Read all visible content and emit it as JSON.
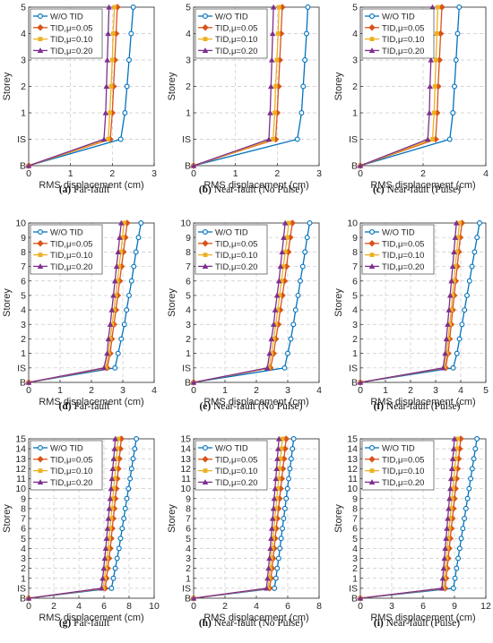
{
  "colors": {
    "W/O TID": "#0072BD",
    "TID,μ=0.05": "#D95319",
    "TID,μ=0.10": "#EDB120",
    "TID,μ=0.20": "#7E2F8E"
  },
  "markers": {
    "W/O TID": "circle",
    "TID,μ=0.05": "diamond",
    "TID,μ=0.10": "square",
    "TID,μ=0.20": "triangle"
  },
  "chart_data": [
    {
      "type": "line",
      "caption_label": "(a)",
      "caption_text": "Far-fault",
      "xlabel": "RMS displacement (cm)",
      "ylabel": "Storey",
      "yticks": [
        "B",
        "IS",
        "1",
        "2",
        "3",
        "4",
        "5"
      ],
      "xlim": [
        0,
        3
      ],
      "xticks": [
        0,
        1,
        2,
        3
      ],
      "series": [
        {
          "name": "W/O TID",
          "values": [
            0,
            2.2,
            2.3,
            2.35,
            2.4,
            2.45,
            2.5
          ]
        },
        {
          "name": "TID,μ=0.05",
          "values": [
            0,
            1.95,
            2.0,
            2.03,
            2.06,
            2.09,
            2.12
          ]
        },
        {
          "name": "TID,μ=0.10",
          "values": [
            0,
            1.9,
            1.94,
            1.97,
            2.0,
            2.02,
            2.05
          ]
        },
        {
          "name": "TID,μ=0.20",
          "values": [
            0,
            1.8,
            1.84,
            1.86,
            1.88,
            1.9,
            1.92
          ]
        }
      ]
    },
    {
      "type": "line",
      "caption_label": "(b)",
      "caption_text": "Near-fault (No Pulse)",
      "xlabel": "RMS displacement (cm)",
      "ylabel": "Storey",
      "yticks": [
        "B",
        "IS",
        "1",
        "2",
        "3",
        "4",
        "5"
      ],
      "xlim": [
        0,
        3
      ],
      "xticks": [
        0,
        1,
        2,
        3
      ],
      "series": [
        {
          "name": "W/O TID",
          "values": [
            0,
            2.48,
            2.58,
            2.62,
            2.66,
            2.7,
            2.73
          ]
        },
        {
          "name": "TID,μ=0.05",
          "values": [
            0,
            1.96,
            2.0,
            2.03,
            2.06,
            2.09,
            2.12
          ]
        },
        {
          "name": "TID,μ=0.10",
          "values": [
            0,
            1.9,
            1.94,
            1.96,
            1.99,
            2.02,
            2.04
          ]
        },
        {
          "name": "TID,μ=0.20",
          "values": [
            0,
            1.8,
            1.83,
            1.85,
            1.87,
            1.89,
            1.91
          ]
        }
      ]
    },
    {
      "type": "line",
      "caption_label": "(c)",
      "caption_text": "Near-fault (Pulse)",
      "xlabel": "RMS displacement (cm)",
      "ylabel": "Storey",
      "yticks": [
        "B",
        "IS",
        "1",
        "2",
        "3",
        "4",
        "5"
      ],
      "xlim": [
        0,
        4
      ],
      "xticks": [
        0,
        2,
        4
      ],
      "series": [
        {
          "name": "W/O TID",
          "values": [
            0,
            2.85,
            2.95,
            3.0,
            3.05,
            3.1,
            3.15
          ]
        },
        {
          "name": "TID,μ=0.05",
          "values": [
            0,
            2.4,
            2.45,
            2.48,
            2.52,
            2.56,
            2.6
          ]
        },
        {
          "name": "TID,μ=0.10",
          "values": [
            0,
            2.3,
            2.35,
            2.38,
            2.41,
            2.44,
            2.47
          ]
        },
        {
          "name": "TID,μ=0.20",
          "values": [
            0,
            2.15,
            2.2,
            2.22,
            2.25,
            2.28,
            2.3
          ]
        }
      ]
    },
    {
      "type": "line",
      "caption_label": "(d)",
      "caption_text": "Far-fault",
      "xlabel": "RMS displacement (cm)",
      "ylabel": "Storey",
      "yticks": [
        "B",
        "IS",
        "1",
        "2",
        "3",
        "4",
        "5",
        "6",
        "7",
        "8",
        "9",
        "10"
      ],
      "xlim": [
        0,
        4
      ],
      "xticks": [
        0,
        1,
        2,
        3,
        4
      ],
      "series": [
        {
          "name": "W/O TID",
          "values": [
            0,
            2.75,
            2.85,
            2.95,
            3.05,
            3.12,
            3.2,
            3.28,
            3.35,
            3.42,
            3.5,
            3.58
          ]
        },
        {
          "name": "TID,μ=0.05",
          "values": [
            0,
            2.5,
            2.6,
            2.65,
            2.72,
            2.78,
            2.84,
            2.9,
            2.96,
            3.02,
            3.08,
            3.14
          ]
        },
        {
          "name": "TID,μ=0.10",
          "values": [
            0,
            2.45,
            2.55,
            2.6,
            2.66,
            2.72,
            2.77,
            2.83,
            2.88,
            2.94,
            2.99,
            3.04
          ]
        },
        {
          "name": "TID,μ=0.20",
          "values": [
            0,
            2.4,
            2.5,
            2.54,
            2.6,
            2.65,
            2.7,
            2.75,
            2.8,
            2.85,
            2.9,
            2.95
          ]
        }
      ]
    },
    {
      "type": "line",
      "caption_label": "(e)",
      "caption_text": "Near-fault (No Pulse)",
      "xlabel": "RMS displacement (cm)",
      "ylabel": "Storey",
      "yticks": [
        "B",
        "IS",
        "1",
        "2",
        "3",
        "4",
        "5",
        "6",
        "7",
        "8",
        "9",
        "10"
      ],
      "xlim": [
        0,
        4
      ],
      "xticks": [
        0,
        1,
        2,
        3,
        4
      ],
      "series": [
        {
          "name": "W/O TID",
          "values": [
            0,
            2.9,
            3.0,
            3.1,
            3.18,
            3.25,
            3.33,
            3.4,
            3.48,
            3.55,
            3.62,
            3.7
          ]
        },
        {
          "name": "TID,μ=0.05",
          "values": [
            0,
            2.45,
            2.55,
            2.62,
            2.7,
            2.76,
            2.83,
            2.9,
            2.96,
            3.02,
            3.08,
            3.15
          ]
        },
        {
          "name": "TID,μ=0.10",
          "values": [
            0,
            2.4,
            2.48,
            2.55,
            2.62,
            2.68,
            2.74,
            2.8,
            2.86,
            2.92,
            2.98,
            3.03
          ]
        },
        {
          "name": "TID,μ=0.20",
          "values": [
            0,
            2.35,
            2.42,
            2.48,
            2.55,
            2.6,
            2.66,
            2.72,
            2.77,
            2.82,
            2.87,
            2.92
          ]
        }
      ]
    },
    {
      "type": "line",
      "caption_label": "(f)",
      "caption_text": "Near-fault (Pulse)",
      "xlabel": "RMS displacement (cm)",
      "ylabel": "Storey",
      "yticks": [
        "B",
        "IS",
        "1",
        "2",
        "3",
        "4",
        "5",
        "6",
        "7",
        "8",
        "9",
        "10"
      ],
      "xlim": [
        0,
        5
      ],
      "xticks": [
        0,
        1,
        2,
        3,
        4,
        5
      ],
      "series": [
        {
          "name": "W/O TID",
          "values": [
            0,
            3.7,
            3.85,
            3.95,
            4.05,
            4.15,
            4.25,
            4.35,
            4.45,
            4.55,
            4.65,
            4.75
          ]
        },
        {
          "name": "TID,μ=0.05",
          "values": [
            0,
            3.4,
            3.5,
            3.56,
            3.62,
            3.68,
            3.74,
            3.8,
            3.86,
            3.92,
            3.98,
            4.05
          ]
        },
        {
          "name": "TID,μ=0.10",
          "values": [
            0,
            3.35,
            3.44,
            3.5,
            3.56,
            3.62,
            3.67,
            3.73,
            3.78,
            3.84,
            3.89,
            3.95
          ]
        },
        {
          "name": "TID,μ=0.20",
          "values": [
            0,
            3.3,
            3.38,
            3.43,
            3.48,
            3.53,
            3.58,
            3.63,
            3.68,
            3.73,
            3.78,
            3.83
          ]
        }
      ]
    },
    {
      "type": "line",
      "caption_label": "(g)",
      "caption_text": "Far-fault",
      "xlabel": "RMS displacement (cm)",
      "ylabel": "Storey",
      "yticks": [
        "B",
        "IS",
        "1",
        "2",
        "3",
        "4",
        "5",
        "6",
        "7",
        "8",
        "9",
        "10",
        "11",
        "12",
        "13",
        "14",
        "15"
      ],
      "xlim": [
        0,
        10
      ],
      "xticks": [
        0,
        2,
        4,
        6,
        8,
        10
      ],
      "series": [
        {
          "name": "W/O TID",
          "values": [
            0,
            6.6,
            6.75,
            6.9,
            7.05,
            7.2,
            7.32,
            7.45,
            7.58,
            7.7,
            7.82,
            7.95,
            8.08,
            8.2,
            8.32,
            8.45,
            8.58
          ]
        },
        {
          "name": "TID,μ=0.05",
          "values": [
            0,
            6.1,
            6.2,
            6.3,
            6.4,
            6.5,
            6.58,
            6.66,
            6.74,
            6.82,
            6.9,
            6.98,
            7.06,
            7.14,
            7.22,
            7.3,
            7.38
          ]
        },
        {
          "name": "TID,μ=0.10",
          "values": [
            0,
            5.95,
            6.05,
            6.14,
            6.23,
            6.32,
            6.4,
            6.48,
            6.56,
            6.63,
            6.7,
            6.77,
            6.85,
            6.92,
            6.99,
            7.06,
            7.13
          ]
        },
        {
          "name": "TID,μ=0.20",
          "values": [
            0,
            5.8,
            5.9,
            5.98,
            6.06,
            6.14,
            6.21,
            6.28,
            6.35,
            6.42,
            6.49,
            6.56,
            6.63,
            6.7,
            6.77,
            6.84,
            6.9
          ]
        }
      ]
    },
    {
      "type": "line",
      "caption_label": "(h)",
      "caption_text": "Near-fault (No Pulse)",
      "xlabel": "RMS displacement (cm)",
      "ylabel": "Storey",
      "yticks": [
        "B",
        "IS",
        "1",
        "2",
        "3",
        "4",
        "5",
        "6",
        "7",
        "8",
        "9",
        "10",
        "11",
        "12",
        "13",
        "14",
        "15"
      ],
      "xlim": [
        0,
        8
      ],
      "xticks": [
        0,
        2,
        4,
        6,
        8
      ],
      "series": [
        {
          "name": "W/O TID",
          "values": [
            0,
            5.15,
            5.25,
            5.33,
            5.42,
            5.5,
            5.58,
            5.66,
            5.74,
            5.82,
            5.9,
            5.98,
            6.06,
            6.14,
            6.22,
            6.3,
            6.38
          ]
        },
        {
          "name": "TID,μ=0.05",
          "values": [
            0,
            4.85,
            4.93,
            5.0,
            5.07,
            5.14,
            5.2,
            5.27,
            5.34,
            5.41,
            5.48,
            5.55,
            5.62,
            5.69,
            5.76,
            5.83,
            5.9
          ]
        },
        {
          "name": "TID,μ=0.10",
          "values": [
            0,
            4.75,
            4.82,
            4.88,
            4.94,
            5.0,
            5.06,
            5.12,
            5.18,
            5.24,
            5.3,
            5.36,
            5.42,
            5.48,
            5.54,
            5.6,
            5.66
          ]
        },
        {
          "name": "TID,μ=0.20",
          "values": [
            0,
            4.65,
            4.71,
            4.77,
            4.83,
            4.89,
            4.94,
            4.99,
            5.04,
            5.09,
            5.14,
            5.19,
            5.24,
            5.29,
            5.34,
            5.39,
            5.44
          ]
        }
      ]
    },
    {
      "type": "line",
      "caption_label": "(i)",
      "caption_text": "Near-fault (Pulse)",
      "xlabel": "RMS displacement (cm)",
      "ylabel": "Storey",
      "yticks": [
        "B",
        "IS",
        "1",
        "2",
        "3",
        "4",
        "5",
        "6",
        "7",
        "8",
        "9",
        "10",
        "11",
        "12",
        "13",
        "14",
        "15"
      ],
      "xlim": [
        0,
        12
      ],
      "xticks": [
        0,
        3,
        6,
        9,
        12
      ],
      "series": [
        {
          "name": "W/O TID",
          "values": [
            0,
            8.9,
            9.05,
            9.2,
            9.35,
            9.5,
            9.65,
            9.8,
            9.95,
            10.1,
            10.25,
            10.4,
            10.55,
            10.7,
            10.85,
            11.0,
            11.15
          ]
        },
        {
          "name": "TID,μ=0.05",
          "values": [
            0,
            8.1,
            8.2,
            8.3,
            8.4,
            8.5,
            8.6,
            8.7,
            8.8,
            8.9,
            9.0,
            9.1,
            9.2,
            9.3,
            9.4,
            9.5,
            9.6
          ]
        },
        {
          "name": "TID,μ=0.10",
          "values": [
            0,
            7.95,
            8.04,
            8.13,
            8.22,
            8.31,
            8.4,
            8.49,
            8.58,
            8.67,
            8.76,
            8.85,
            8.94,
            9.03,
            9.12,
            9.21,
            9.3
          ]
        },
        {
          "name": "TID,μ=0.20",
          "values": [
            0,
            7.8,
            7.88,
            7.96,
            8.04,
            8.12,
            8.2,
            8.28,
            8.36,
            8.44,
            8.52,
            8.6,
            8.68,
            8.76,
            8.84,
            8.92,
            9.0
          ]
        }
      ]
    }
  ]
}
